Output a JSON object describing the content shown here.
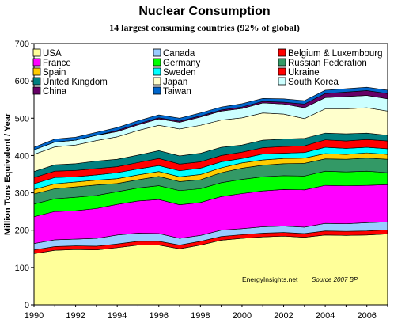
{
  "chart_data": {
    "type": "area",
    "stacked": true,
    "title": "Nuclear Consumption",
    "subtitle": "14 largest consuming countries (92% of global)",
    "ylabel": "Million Tons Equivalent / Year",
    "xlabel": "",
    "ylim": [
      0,
      700
    ],
    "y_ticks": [
      0,
      100,
      200,
      300,
      400,
      500,
      600,
      700
    ],
    "xlim": [
      1990,
      2007
    ],
    "x_ticks": [
      1990,
      1992,
      1994,
      1996,
      1998,
      2000,
      2002,
      2004,
      2006
    ],
    "x": [
      1990,
      1991,
      1992,
      1993,
      1994,
      1995,
      1996,
      1997,
      1998,
      1999,
      2000,
      2001,
      2002,
      2003,
      2004,
      2005,
      2006,
      2007
    ],
    "legend_position": "top",
    "grid": false,
    "annotations": [
      "EnergyInsights.net",
      "Source 2007 BP"
    ],
    "series": [
      {
        "name": "USA",
        "color": "#ffff99",
        "values": [
          137,
          146,
          148,
          147,
          153,
          160,
          160,
          150,
          160,
          173,
          178,
          182,
          184,
          181,
          187,
          186,
          187,
          190
        ]
      },
      {
        "name": "Belgium & Luxembourg",
        "color": "#ff0000",
        "values": [
          10,
          10,
          10,
          10,
          10,
          10,
          10,
          10,
          10,
          10,
          10,
          10,
          10,
          10,
          11,
          11,
          11,
          11
        ]
      },
      {
        "name": "Canada",
        "color": "#99ccff",
        "values": [
          17,
          18,
          18,
          21,
          24,
          22,
          21,
          18,
          16,
          17,
          16,
          17,
          17,
          17,
          20,
          20,
          22,
          21
        ]
      },
      {
        "name": "France",
        "color": "#ff00ff",
        "values": [
          72,
          76,
          76,
          80,
          82,
          86,
          91,
          90,
          88,
          90,
          94,
          96,
          98,
          100,
          102,
          102,
          100,
          100
        ]
      },
      {
        "name": "Germany",
        "color": "#00ff00",
        "values": [
          34,
          34,
          36,
          35,
          34,
          35,
          37,
          38,
          37,
          37,
          38,
          38,
          37,
          37,
          38,
          37,
          38,
          32
        ]
      },
      {
        "name": "Russian Federation",
        "color": "#339966",
        "values": [
          27,
          27,
          28,
          28,
          22,
          22,
          25,
          24,
          24,
          27,
          30,
          31,
          32,
          34,
          33,
          34,
          35,
          36
        ]
      },
      {
        "name": "Spain",
        "color": "#ffcc00",
        "values": [
          12,
          13,
          13,
          13,
          13,
          13,
          13,
          13,
          14,
          13,
          14,
          14,
          14,
          14,
          14,
          13,
          14,
          13
        ]
      },
      {
        "name": "Sweden",
        "color": "#00ffff",
        "values": [
          15,
          17,
          14,
          14,
          16,
          16,
          16,
          16,
          17,
          16,
          12,
          16,
          14,
          15,
          17,
          16,
          15,
          15
        ]
      },
      {
        "name": "Ukraine",
        "color": "#ff0000",
        "values": [
          17,
          17,
          17,
          17,
          16,
          17,
          19,
          18,
          17,
          17,
          17,
          17,
          18,
          18,
          20,
          20,
          21,
          21
        ]
      },
      {
        "name": "United Kingdom",
        "color": "#008080",
        "values": [
          16,
          17,
          18,
          20,
          20,
          20,
          21,
          22,
          23,
          22,
          19,
          20,
          20,
          20,
          18,
          19,
          17,
          15
        ]
      },
      {
        "name": "Japan",
        "color": "#ffffcc",
        "values": [
          46,
          48,
          50,
          55,
          60,
          66,
          68,
          72,
          75,
          73,
          73,
          73,
          67,
          53,
          65,
          67,
          68,
          65
        ]
      },
      {
        "name": "South Korea",
        "color": "#ccffff",
        "values": [
          12,
          13,
          13,
          14,
          14,
          15,
          17,
          18,
          22,
          24,
          25,
          27,
          27,
          29,
          30,
          33,
          33,
          33
        ]
      },
      {
        "name": "China",
        "color": "#660066",
        "values": [
          0,
          0,
          0,
          0,
          3,
          3,
          3,
          3,
          3,
          3,
          4,
          4,
          5,
          10,
          11,
          12,
          13,
          14
        ]
      },
      {
        "name": "Taiwan",
        "color": "#0066cc",
        "values": [
          7,
          8,
          8,
          8,
          8,
          8,
          8,
          8,
          8,
          8,
          9,
          8,
          9,
          9,
          9,
          9,
          9,
          9
        ]
      }
    ],
    "legend_layout": [
      [
        "USA",
        "Canada",
        "Belgium & Luxembourg"
      ],
      [
        "France",
        "Germany",
        "Russian Federation"
      ],
      [
        "Spain",
        "Sweden",
        "Ukraine"
      ],
      [
        "United Kingdom",
        "Japan",
        "South Korea"
      ],
      [
        "China",
        "Taiwan"
      ]
    ]
  }
}
